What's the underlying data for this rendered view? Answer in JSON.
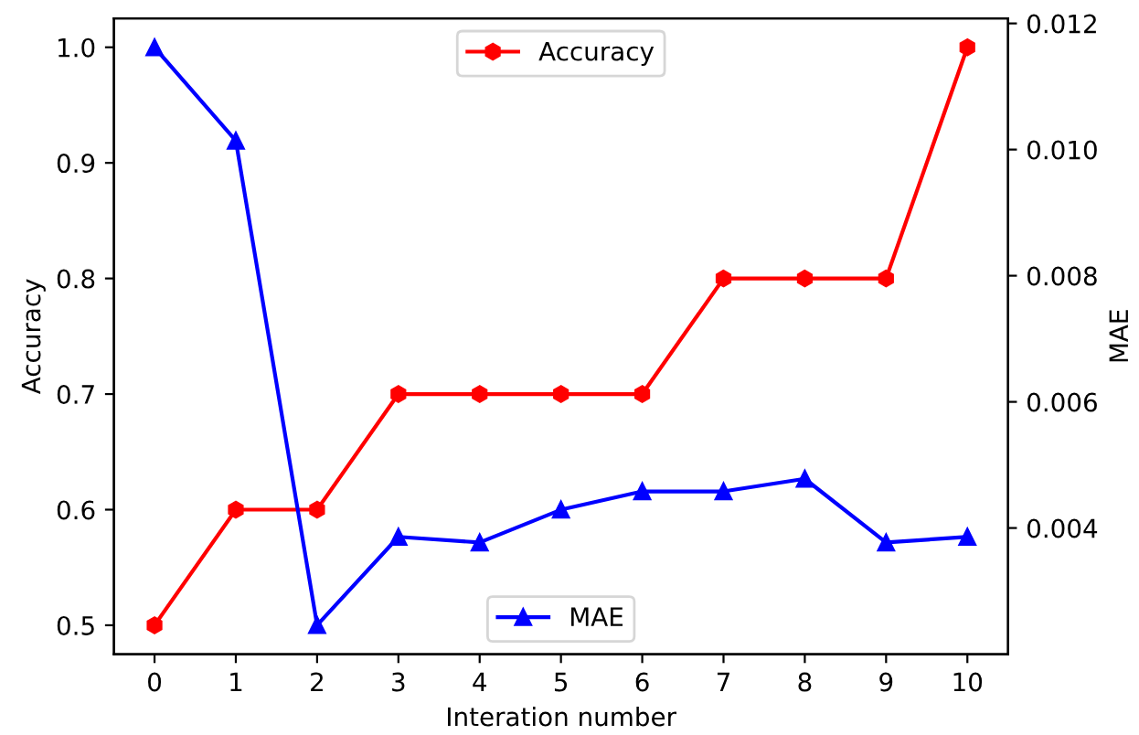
{
  "chart_data": {
    "type": "line",
    "xlabel": "Interation number",
    "ylabel": "Accuracy",
    "y2label": "MAE",
    "x": [
      0,
      1,
      2,
      3,
      4,
      5,
      6,
      7,
      8,
      9,
      10
    ],
    "series": [
      {
        "name": "Accuracy",
        "color": "#ff0000",
        "marker": "circle",
        "values": [
          0.5,
          0.6,
          0.6,
          0.7,
          0.7,
          0.7,
          0.7,
          0.8,
          0.8,
          0.8,
          1.0
        ]
      },
      {
        "name": "MAE",
        "color": "#0000ff",
        "marker": "triangle",
        "axis": "y2",
        "values": [
          0.01162,
          0.01014,
          0.00246,
          0.00386,
          0.00377,
          0.00429,
          0.00458,
          0.00458,
          0.00478,
          0.00377,
          0.00386
        ]
      }
    ],
    "xlim": [
      -0.5,
      10.5
    ],
    "xticks": [
      0,
      1,
      2,
      3,
      4,
      5,
      6,
      7,
      8,
      9,
      10
    ],
    "ylim": [
      0.475,
      1.025
    ],
    "yticks": [
      0.5,
      0.6,
      0.7,
      0.8,
      0.9,
      {
        "value": 1.0,
        "label": "1.0"
      }
    ],
    "y2lim": [
      0.002,
      0.01208
    ],
    "y2ticks": [
      0.004,
      0.006,
      0.008,
      {
        "value": 0.01,
        "label": "0.010"
      },
      0.012
    ],
    "grid": false,
    "legend": "top",
    "line_style": "solid"
  }
}
